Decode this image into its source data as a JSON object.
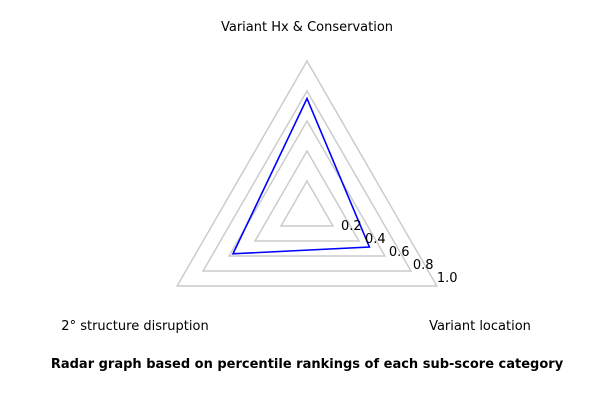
{
  "chart_data": {
    "type": "radar",
    "axes": [
      "Variant Hx & Conservation",
      "Variant location",
      "2° structure disruption"
    ],
    "ticks": [
      0.2,
      0.4,
      0.6,
      0.8,
      1.0
    ],
    "tick_labels": [
      "0.2",
      "0.4",
      "0.6",
      "0.8",
      "1.0"
    ],
    "range": [
      0,
      1.0
    ],
    "gridlines": [
      0.2,
      0.4,
      0.6,
      0.8,
      1.0
    ],
    "series": [
      {
        "values": [
          0.75,
          0.48,
          0.57
        ],
        "color": "#0000ff"
      }
    ],
    "grid_color": "#cccccc",
    "grid": true
  },
  "caption": "Radar graph based on percentile rankings of each sub-score category"
}
